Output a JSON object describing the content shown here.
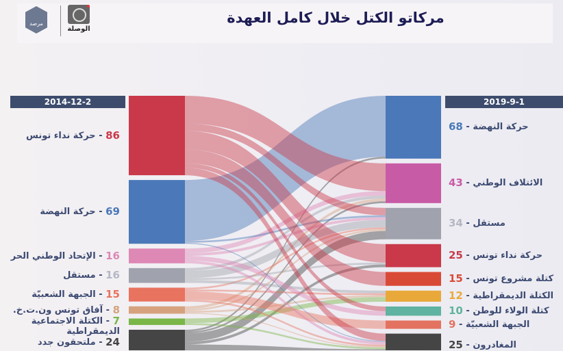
{
  "title": "مركاتو الكتل خلال كامل العهدة",
  "logos": {
    "observatory": "مرصد",
    "site": "الوصلة"
  },
  "chart_data": {
    "type": "sankey",
    "title": "مركاتو الكتل خلال كامل العهدة",
    "left_date": "2014-12-2",
    "right_date": "2019-9-1",
    "left_nodes": [
      {
        "id": "L_nidaa",
        "name": "حركة نداء تونس",
        "value": 86,
        "color": "#c9394a"
      },
      {
        "id": "L_nahda",
        "name": "حركة النهضة",
        "value": 69,
        "color": "#4a78b8"
      },
      {
        "id": "L_upl",
        "name": "الإتحاد الوطني الحر",
        "value": 16,
        "color": "#de88b5"
      },
      {
        "id": "L_ind",
        "name": "مستقل",
        "value": 16,
        "color": "#a0a3ad"
      },
      {
        "id": "L_front",
        "name": "الجبهة الشعبيّة",
        "value": 15,
        "color": "#e8735f"
      },
      {
        "id": "L_afek",
        "name": "آفاق تونس ون.ت.خ.",
        "value": 8,
        "color": "#d6a27e"
      },
      {
        "id": "L_social",
        "name": "الكتلة الاجتماعية الديمقراطية",
        "value": 7,
        "color": "#7ab648"
      },
      {
        "id": "L_new",
        "name": "ملتحقون جدد",
        "value": 24,
        "color": "#454545"
      }
    ],
    "right_nodes": [
      {
        "id": "R_nahda",
        "name": "حركة النهضة",
        "value": 68,
        "color": "#4a78b8"
      },
      {
        "id": "R_coal",
        "name": "الائتلاف الوطني",
        "value": 43,
        "color": "#c85ba6"
      },
      {
        "id": "R_ind",
        "name": "مستقل",
        "value": 34,
        "color": "#a0a3ad"
      },
      {
        "id": "R_nidaa",
        "name": "حركة نداء تونس",
        "value": 25,
        "color": "#c9394a"
      },
      {
        "id": "R_mach",
        "name": "كتلة مشروع تونس",
        "value": 15,
        "color": "#d94a36"
      },
      {
        "id": "R_dem",
        "name": "الكتلة الديمقراطية",
        "value": 12,
        "color": "#e9a93a"
      },
      {
        "id": "R_wala",
        "name": "كتلة الولاء للوطن",
        "value": 10,
        "color": "#5fb3a0"
      },
      {
        "id": "R_front",
        "name": "الجبهة الشعبيّة",
        "value": 9,
        "color": "#e37260"
      },
      {
        "id": "R_dep",
        "name": "المغادرون",
        "value": 25,
        "color": "#454545"
      }
    ],
    "flows": [
      {
        "from": "L_nidaa",
        "to": "R_coal",
        "value": 30
      },
      {
        "from": "L_nidaa",
        "to": "R_ind",
        "value": 8
      },
      {
        "from": "L_nidaa",
        "to": "R_nidaa",
        "value": 20
      },
      {
        "from": "L_nidaa",
        "to": "R_mach",
        "value": 15
      },
      {
        "from": "L_nidaa",
        "to": "R_wala",
        "value": 5
      },
      {
        "from": "L_nidaa",
        "to": "R_dep",
        "value": 8
      },
      {
        "from": "L_nahda",
        "to": "R_nahda",
        "value": 66
      },
      {
        "from": "L_nahda",
        "to": "R_ind",
        "value": 2
      },
      {
        "from": "L_nahda",
        "to": "R_dep",
        "value": 1
      },
      {
        "from": "L_upl",
        "to": "R_coal",
        "value": 5
      },
      {
        "from": "L_upl",
        "to": "R_ind",
        "value": 3
      },
      {
        "from": "L_upl",
        "to": "R_wala",
        "value": 5
      },
      {
        "from": "L_upl",
        "to": "R_dep",
        "value": 3
      },
      {
        "from": "L_ind",
        "to": "R_coal",
        "value": 3
      },
      {
        "from": "L_ind",
        "to": "R_ind",
        "value": 8
      },
      {
        "from": "L_ind",
        "to": "R_nidaa",
        "value": 2
      },
      {
        "from": "L_ind",
        "to": "R_dem",
        "value": 3
      },
      {
        "from": "L_front",
        "to": "R_ind",
        "value": 2
      },
      {
        "from": "L_front",
        "to": "R_dem",
        "value": 2
      },
      {
        "from": "L_front",
        "to": "R_front",
        "value": 9
      },
      {
        "from": "L_front",
        "to": "R_dep",
        "value": 2
      },
      {
        "from": "L_afek",
        "to": "R_coal",
        "value": 3
      },
      {
        "from": "L_afek",
        "to": "R_ind",
        "value": 2
      },
      {
        "from": "L_afek",
        "to": "R_dem",
        "value": 2
      },
      {
        "from": "L_afek",
        "to": "R_dep",
        "value": 1
      },
      {
        "from": "L_social",
        "to": "R_dem",
        "value": 5
      },
      {
        "from": "L_social",
        "to": "R_dep",
        "value": 2
      },
      {
        "from": "L_new",
        "to": "R_nahda",
        "value": 2
      },
      {
        "from": "L_new",
        "to": "R_coal",
        "value": 2
      },
      {
        "from": "L_new",
        "to": "R_ind",
        "value": 9
      },
      {
        "from": "L_new",
        "to": "R_nidaa",
        "value": 3
      },
      {
        "from": "L_new",
        "to": "R_dep",
        "value": 8
      }
    ]
  }
}
